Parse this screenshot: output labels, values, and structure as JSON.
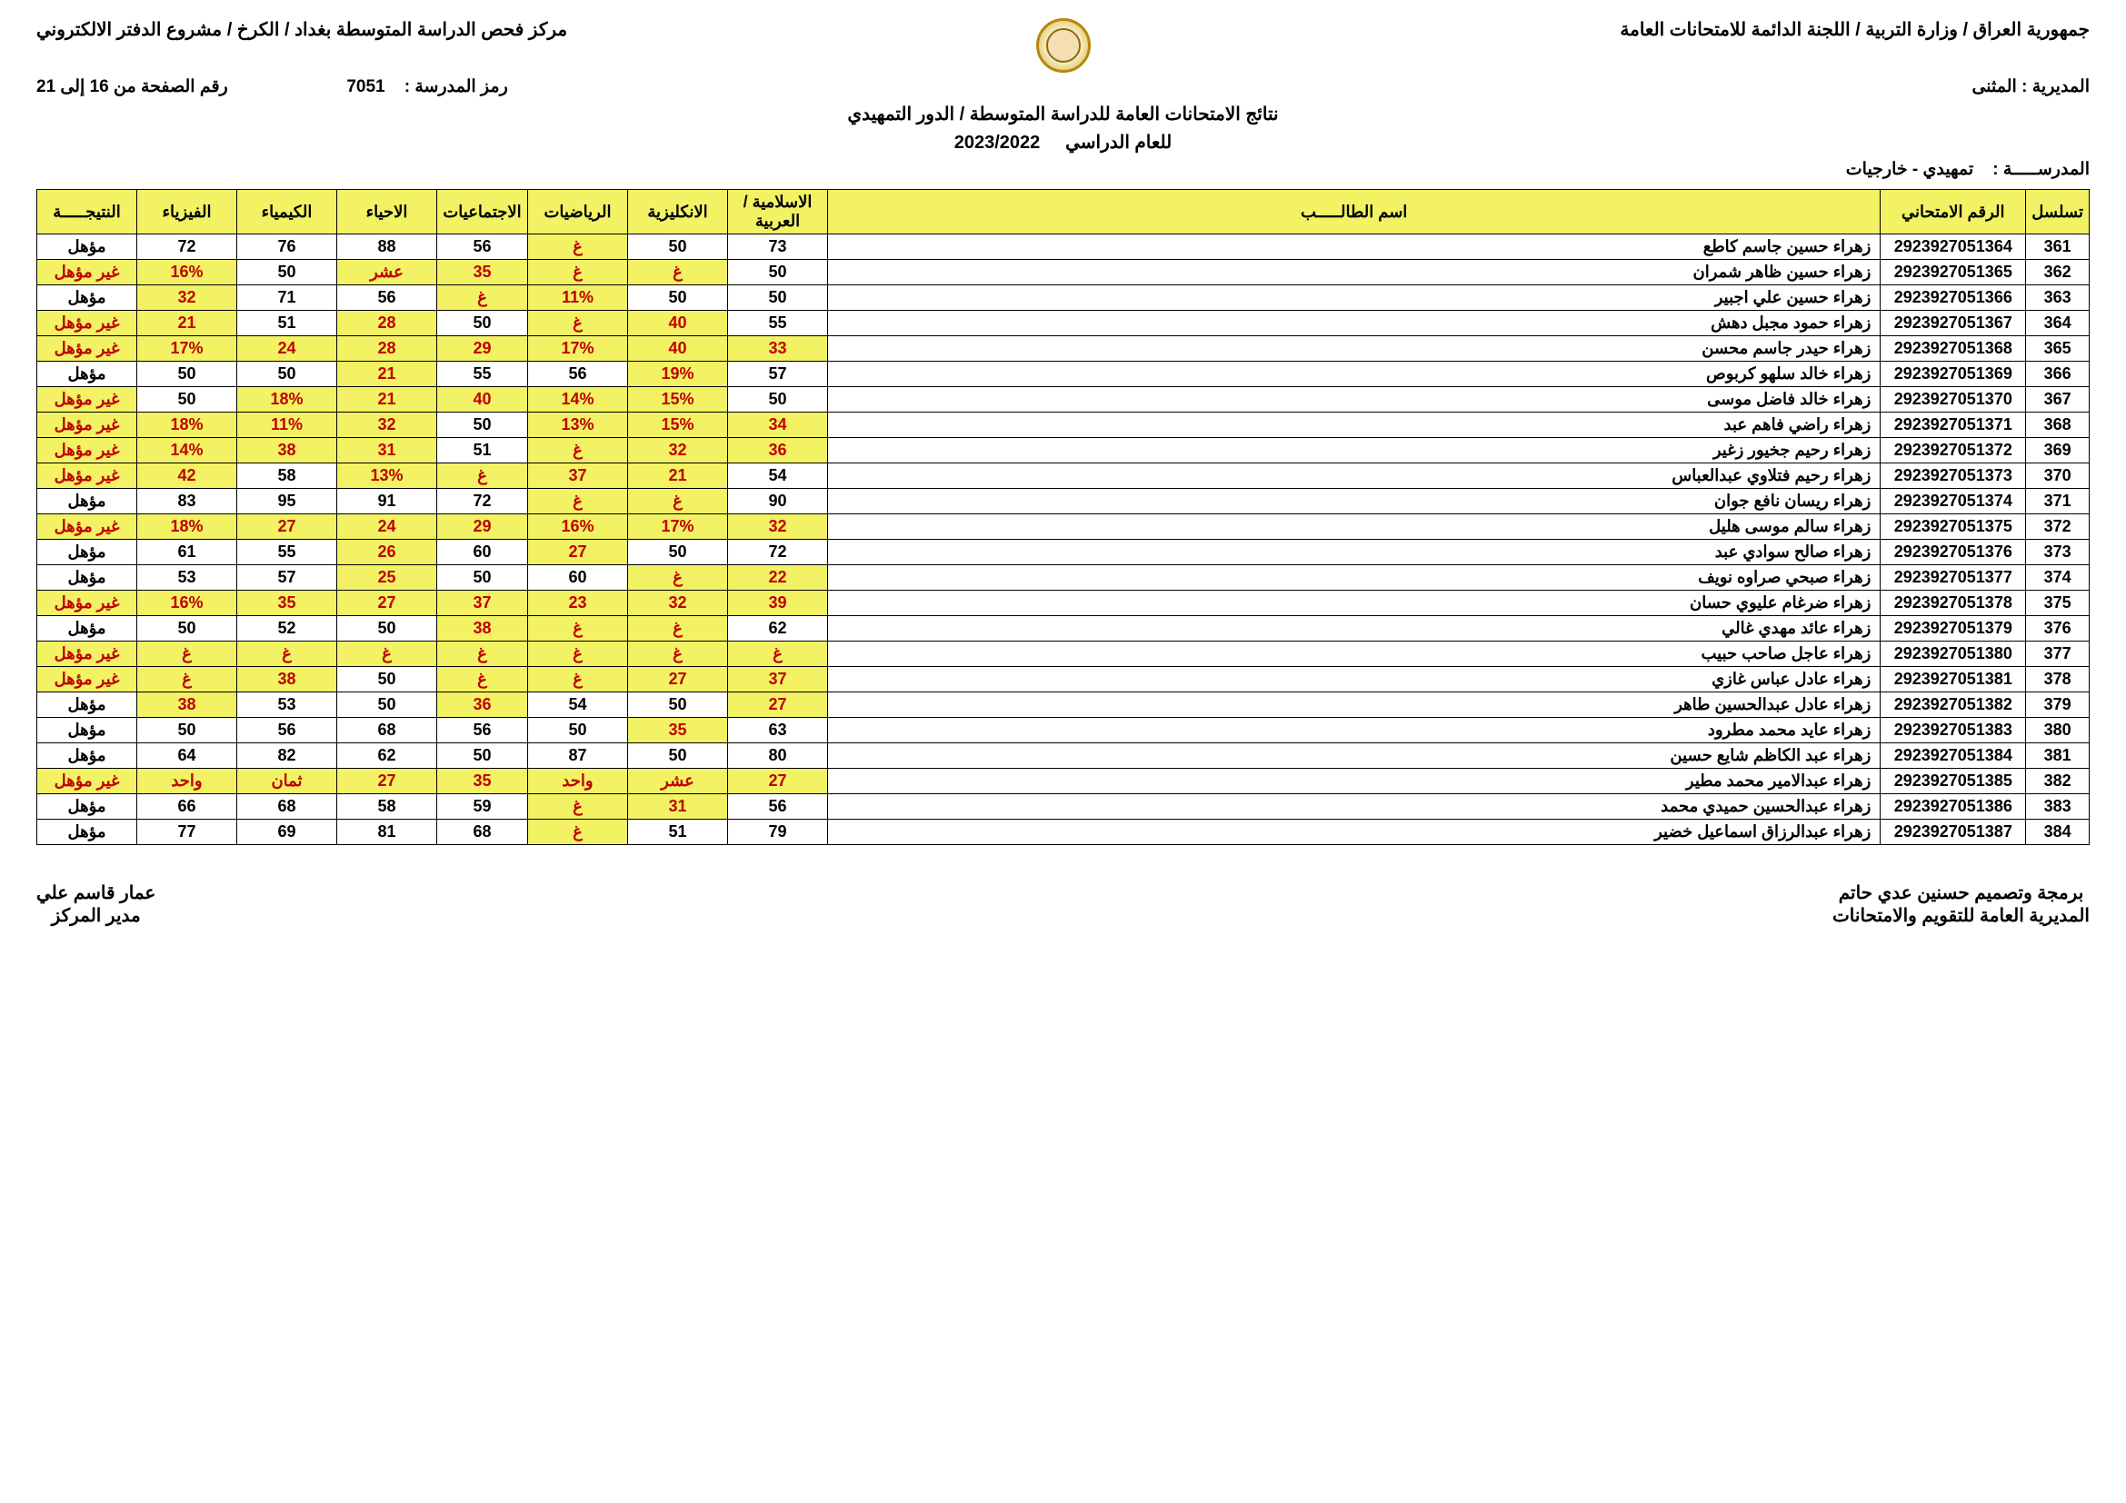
{
  "header": {
    "right_line": "جمهورية العراق / وزارة التربية / اللجنة الدائمة للامتحانات العامة",
    "left_line": "مركز فحص الدراسة المتوسطة بغداد / الكرخ / مشروع الدفتر الالكتروني",
    "school_code_label": "رمز المدرسة :",
    "school_code": "7051",
    "page_label": "رقم الصفحة من 16 إلى 21",
    "title1": "نتائج الامتحانات العامة للدراسة المتوسطة / الدور التمهيدي",
    "title2_label": "للعام الدراسي",
    "title2_value": "2023/2022",
    "directorate_label": "المديرية :",
    "directorate_value": "المثنى",
    "school_label": "المدرســـــة :",
    "school_value": "تمهيدي - خارجيات"
  },
  "columns": [
    "تسلسل",
    "الرقم الامتحاني",
    "اسم الطالـــــب",
    "الاسلامية / العربية",
    "الانكليزية",
    "الرياضيات",
    "الاجتماعيات",
    "الاحياء",
    "الكيمياء",
    "الفيزياء",
    "النتيجـــــة"
  ],
  "rows": [
    {
      "seq": "361",
      "exam": "2923927051364",
      "name": "زهراء حسين جاسم كاطع",
      "c": [
        {
          "v": "73"
        },
        {
          "v": "50"
        },
        {
          "v": "غ",
          "f": 1
        },
        {
          "v": "56"
        },
        {
          "v": "88"
        },
        {
          "v": "76"
        },
        {
          "v": "72"
        },
        {
          "v": "مؤهل"
        }
      ]
    },
    {
      "seq": "362",
      "exam": "2923927051365",
      "name": "زهراء حسين ظاهر شمران",
      "c": [
        {
          "v": "50"
        },
        {
          "v": "غ",
          "f": 1
        },
        {
          "v": "غ",
          "f": 1
        },
        {
          "v": "35",
          "f": 1
        },
        {
          "v": "عشر",
          "f": 1
        },
        {
          "v": "50"
        },
        {
          "v": "16%",
          "f": 1
        },
        {
          "v": "غير مؤهل",
          "f": 1
        }
      ]
    },
    {
      "seq": "363",
      "exam": "2923927051366",
      "name": "زهراء حسين علي اجبير",
      "c": [
        {
          "v": "50"
        },
        {
          "v": "50"
        },
        {
          "v": "11%",
          "f": 1
        },
        {
          "v": "غ",
          "f": 1
        },
        {
          "v": "56"
        },
        {
          "v": "71"
        },
        {
          "v": "32",
          "f": 1
        },
        {
          "v": "مؤهل"
        }
      ]
    },
    {
      "seq": "364",
      "exam": "2923927051367",
      "name": "زهراء حمود مجبل دهش",
      "c": [
        {
          "v": "55"
        },
        {
          "v": "40",
          "f": 1
        },
        {
          "v": "غ",
          "f": 1
        },
        {
          "v": "50"
        },
        {
          "v": "28",
          "f": 1
        },
        {
          "v": "51"
        },
        {
          "v": "21",
          "f": 1
        },
        {
          "v": "غير مؤهل",
          "f": 1
        }
      ]
    },
    {
      "seq": "365",
      "exam": "2923927051368",
      "name": "زهراء حيدر جاسم محسن",
      "c": [
        {
          "v": "33",
          "f": 1
        },
        {
          "v": "40",
          "f": 1
        },
        {
          "v": "17%",
          "f": 1
        },
        {
          "v": "29",
          "f": 1
        },
        {
          "v": "28",
          "f": 1
        },
        {
          "v": "24",
          "f": 1
        },
        {
          "v": "17%",
          "f": 1
        },
        {
          "v": "غير مؤهل",
          "f": 1
        }
      ]
    },
    {
      "seq": "366",
      "exam": "2923927051369",
      "name": "زهراء خالد سلهو كربوص",
      "c": [
        {
          "v": "57"
        },
        {
          "v": "19%",
          "f": 1
        },
        {
          "v": "56"
        },
        {
          "v": "55"
        },
        {
          "v": "21",
          "f": 1
        },
        {
          "v": "50"
        },
        {
          "v": "50"
        },
        {
          "v": "مؤهل"
        }
      ]
    },
    {
      "seq": "367",
      "exam": "2923927051370",
      "name": "زهراء خالد فاضل موسى",
      "c": [
        {
          "v": "50"
        },
        {
          "v": "15%",
          "f": 1
        },
        {
          "v": "14%",
          "f": 1
        },
        {
          "v": "40",
          "f": 1
        },
        {
          "v": "21",
          "f": 1
        },
        {
          "v": "18%",
          "f": 1
        },
        {
          "v": "50"
        },
        {
          "v": "غير مؤهل",
          "f": 1
        }
      ]
    },
    {
      "seq": "368",
      "exam": "2923927051371",
      "name": "زهراء راضي فاهم عبد",
      "c": [
        {
          "v": "34",
          "f": 1
        },
        {
          "v": "15%",
          "f": 1
        },
        {
          "v": "13%",
          "f": 1
        },
        {
          "v": "50"
        },
        {
          "v": "32",
          "f": 1
        },
        {
          "v": "11%",
          "f": 1
        },
        {
          "v": "18%",
          "f": 1
        },
        {
          "v": "غير مؤهل",
          "f": 1
        }
      ]
    },
    {
      "seq": "369",
      "exam": "2923927051372",
      "name": "زهراء رحيم جخيور زغير",
      "c": [
        {
          "v": "36",
          "f": 1
        },
        {
          "v": "32",
          "f": 1
        },
        {
          "v": "غ",
          "f": 1
        },
        {
          "v": "51"
        },
        {
          "v": "31",
          "f": 1
        },
        {
          "v": "38",
          "f": 1
        },
        {
          "v": "14%",
          "f": 1
        },
        {
          "v": "غير مؤهل",
          "f": 1
        }
      ]
    },
    {
      "seq": "370",
      "exam": "2923927051373",
      "name": "زهراء رحيم فتلاوي عبدالعباس",
      "c": [
        {
          "v": "54"
        },
        {
          "v": "21",
          "f": 1
        },
        {
          "v": "37",
          "f": 1
        },
        {
          "v": "غ",
          "f": 1
        },
        {
          "v": "13%",
          "f": 1
        },
        {
          "v": "58"
        },
        {
          "v": "42",
          "f": 1
        },
        {
          "v": "غير مؤهل",
          "f": 1
        }
      ]
    },
    {
      "seq": "371",
      "exam": "2923927051374",
      "name": "زهراء ريسان نافع جوان",
      "c": [
        {
          "v": "90"
        },
        {
          "v": "غ",
          "f": 1
        },
        {
          "v": "غ",
          "f": 1
        },
        {
          "v": "72"
        },
        {
          "v": "91"
        },
        {
          "v": "95"
        },
        {
          "v": "83"
        },
        {
          "v": "مؤهل"
        }
      ]
    },
    {
      "seq": "372",
      "exam": "2923927051375",
      "name": "زهراء سالم موسى هليل",
      "c": [
        {
          "v": "32",
          "f": 1
        },
        {
          "v": "17%",
          "f": 1
        },
        {
          "v": "16%",
          "f": 1
        },
        {
          "v": "29",
          "f": 1
        },
        {
          "v": "24",
          "f": 1
        },
        {
          "v": "27",
          "f": 1
        },
        {
          "v": "18%",
          "f": 1
        },
        {
          "v": "غير مؤهل",
          "f": 1
        }
      ]
    },
    {
      "seq": "373",
      "exam": "2923927051376",
      "name": "زهراء صالح سوادي عبد",
      "c": [
        {
          "v": "72"
        },
        {
          "v": "50"
        },
        {
          "v": "27",
          "f": 1
        },
        {
          "v": "60"
        },
        {
          "v": "26",
          "f": 1
        },
        {
          "v": "55"
        },
        {
          "v": "61"
        },
        {
          "v": "مؤهل"
        }
      ]
    },
    {
      "seq": "374",
      "exam": "2923927051377",
      "name": "زهراء صبحي صراوه نويف",
      "c": [
        {
          "v": "22",
          "f": 1
        },
        {
          "v": "غ",
          "f": 1
        },
        {
          "v": "60"
        },
        {
          "v": "50"
        },
        {
          "v": "25",
          "f": 1
        },
        {
          "v": "57"
        },
        {
          "v": "53"
        },
        {
          "v": "مؤهل"
        }
      ]
    },
    {
      "seq": "375",
      "exam": "2923927051378",
      "name": "زهراء ضرغام عليوي حسان",
      "c": [
        {
          "v": "39",
          "f": 1
        },
        {
          "v": "32",
          "f": 1
        },
        {
          "v": "23",
          "f": 1
        },
        {
          "v": "37",
          "f": 1
        },
        {
          "v": "27",
          "f": 1
        },
        {
          "v": "35",
          "f": 1
        },
        {
          "v": "16%",
          "f": 1
        },
        {
          "v": "غير مؤهل",
          "f": 1
        }
      ]
    },
    {
      "seq": "376",
      "exam": "2923927051379",
      "name": "زهراء عائد مهدي غالي",
      "c": [
        {
          "v": "62"
        },
        {
          "v": "غ",
          "f": 1
        },
        {
          "v": "غ",
          "f": 1
        },
        {
          "v": "38",
          "f": 1
        },
        {
          "v": "50"
        },
        {
          "v": "52"
        },
        {
          "v": "50"
        },
        {
          "v": "مؤهل"
        }
      ]
    },
    {
      "seq": "377",
      "exam": "2923927051380",
      "name": "زهراء عاجل صاحب حبيب",
      "c": [
        {
          "v": "غ",
          "f": 1
        },
        {
          "v": "غ",
          "f": 1
        },
        {
          "v": "غ",
          "f": 1
        },
        {
          "v": "غ",
          "f": 1
        },
        {
          "v": "غ",
          "f": 1
        },
        {
          "v": "غ",
          "f": 1
        },
        {
          "v": "غ",
          "f": 1
        },
        {
          "v": "غير مؤهل",
          "f": 1
        }
      ]
    },
    {
      "seq": "378",
      "exam": "2923927051381",
      "name": "زهراء عادل عباس غازي",
      "c": [
        {
          "v": "37",
          "f": 1
        },
        {
          "v": "27",
          "f": 1
        },
        {
          "v": "غ",
          "f": 1
        },
        {
          "v": "غ",
          "f": 1
        },
        {
          "v": "50"
        },
        {
          "v": "38",
          "f": 1
        },
        {
          "v": "غ",
          "f": 1
        },
        {
          "v": "غير مؤهل",
          "f": 1
        }
      ]
    },
    {
      "seq": "379",
      "exam": "2923927051382",
      "name": "زهراء عادل عبدالحسين طاهر",
      "c": [
        {
          "v": "27",
          "f": 1
        },
        {
          "v": "50"
        },
        {
          "v": "54"
        },
        {
          "v": "36",
          "f": 1
        },
        {
          "v": "50"
        },
        {
          "v": "53"
        },
        {
          "v": "38",
          "f": 1
        },
        {
          "v": "مؤهل"
        }
      ]
    },
    {
      "seq": "380",
      "exam": "2923927051383",
      "name": "زهراء عايد محمد مطرود",
      "c": [
        {
          "v": "63"
        },
        {
          "v": "35",
          "f": 1
        },
        {
          "v": "50"
        },
        {
          "v": "56"
        },
        {
          "v": "68"
        },
        {
          "v": "56"
        },
        {
          "v": "50"
        },
        {
          "v": "مؤهل"
        }
      ]
    },
    {
      "seq": "381",
      "exam": "2923927051384",
      "name": "زهراء عبد الكاظم شايع حسين",
      "c": [
        {
          "v": "80"
        },
        {
          "v": "50"
        },
        {
          "v": "87"
        },
        {
          "v": "50"
        },
        {
          "v": "62"
        },
        {
          "v": "82"
        },
        {
          "v": "64"
        },
        {
          "v": "مؤهل"
        }
      ]
    },
    {
      "seq": "382",
      "exam": "2923927051385",
      "name": "زهراء عبدالامير محمد مطير",
      "c": [
        {
          "v": "27",
          "f": 1
        },
        {
          "v": "عشر",
          "f": 1
        },
        {
          "v": "واحد",
          "f": 1
        },
        {
          "v": "35",
          "f": 1
        },
        {
          "v": "27",
          "f": 1
        },
        {
          "v": "ثمان",
          "f": 1
        },
        {
          "v": "واحد",
          "f": 1
        },
        {
          "v": "غير مؤهل",
          "f": 1
        }
      ]
    },
    {
      "seq": "383",
      "exam": "2923927051386",
      "name": "زهراء عبدالحسين حميدي محمد",
      "c": [
        {
          "v": "56"
        },
        {
          "v": "31",
          "f": 1
        },
        {
          "v": "غ",
          "f": 1
        },
        {
          "v": "59"
        },
        {
          "v": "58"
        },
        {
          "v": "68"
        },
        {
          "v": "66"
        },
        {
          "v": "مؤهل"
        }
      ]
    },
    {
      "seq": "384",
      "exam": "2923927051387",
      "name": "زهراء عبدالرزاق اسماعيل خضير",
      "c": [
        {
          "v": "79"
        },
        {
          "v": "51"
        },
        {
          "v": "غ",
          "f": 1
        },
        {
          "v": "68"
        },
        {
          "v": "81"
        },
        {
          "v": "69"
        },
        {
          "v": "77"
        },
        {
          "v": "مؤهل"
        }
      ]
    }
  ],
  "footer": {
    "right1": "برمجة وتصميم حسنين عدي حاتم",
    "right2": "المديرية العامة للتقويم والامتحانات",
    "left1": "عمار قاسم علي",
    "left2": "مدير المركز"
  }
}
